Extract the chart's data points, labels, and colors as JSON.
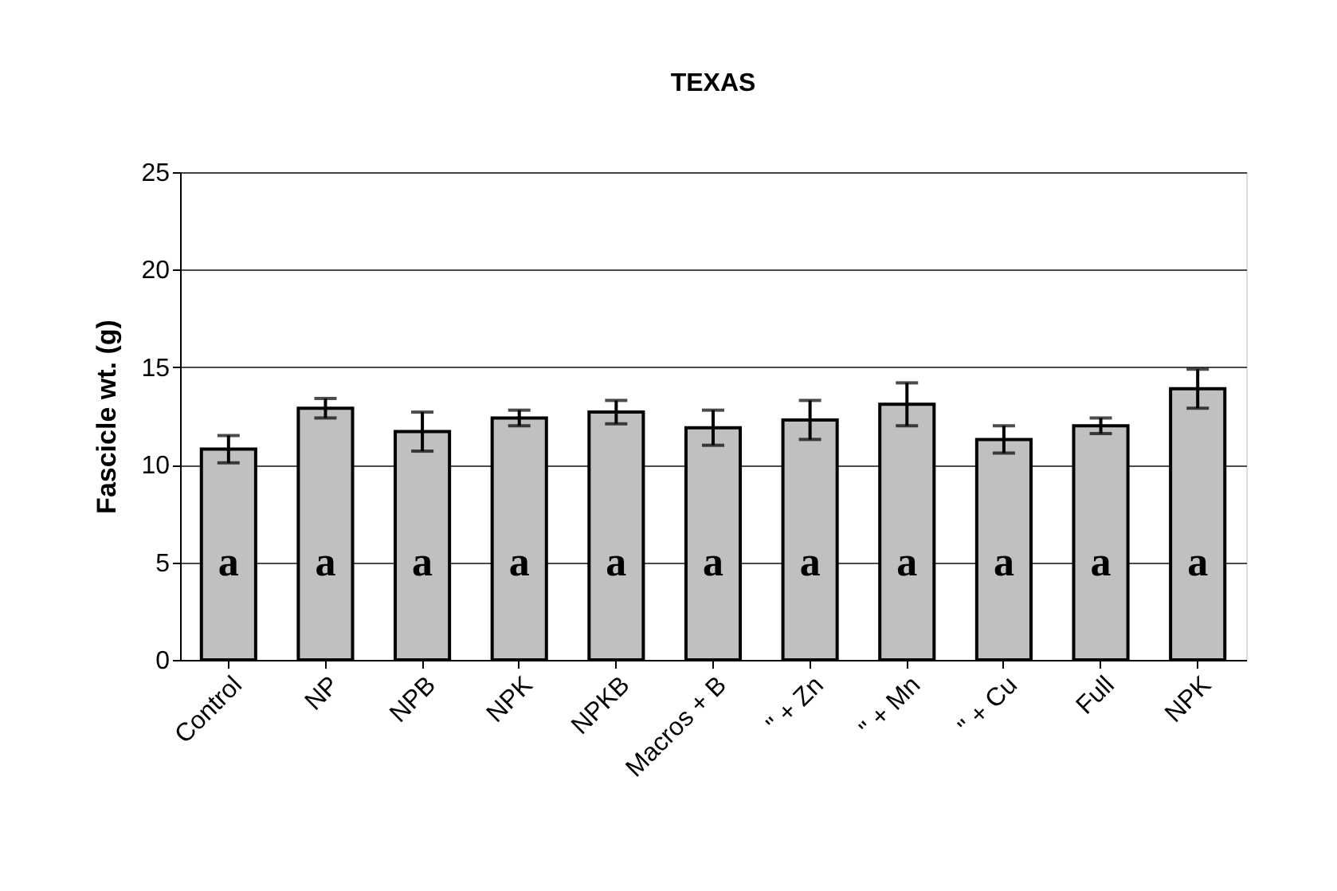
{
  "chart_data": {
    "type": "bar",
    "title": "TEXAS",
    "ylabel": "Fascicle wt. (g)",
    "categories": [
      "Control",
      "NP",
      "NPB",
      "NPK",
      "NPKB",
      "Macros + B",
      "\" + Zn",
      "\" + Mn",
      "\" + Cu",
      "Full",
      "NPK"
    ],
    "values": [
      10.8,
      12.9,
      11.7,
      12.4,
      12.7,
      11.9,
      12.3,
      13.1,
      11.3,
      12.0,
      13.9
    ],
    "errors": [
      0.7,
      0.5,
      1.0,
      0.4,
      0.6,
      0.9,
      1.0,
      1.1,
      0.7,
      0.4,
      1.0
    ],
    "color": "#c0c0c0",
    "ylim": [
      0,
      25
    ],
    "yticks": [
      0,
      5,
      10,
      15,
      20,
      25
    ],
    "grid": "y",
    "annotations": [
      "a",
      "a",
      "a",
      "a",
      "a",
      "a",
      "a",
      "a",
      "a",
      "a",
      "a"
    ]
  }
}
